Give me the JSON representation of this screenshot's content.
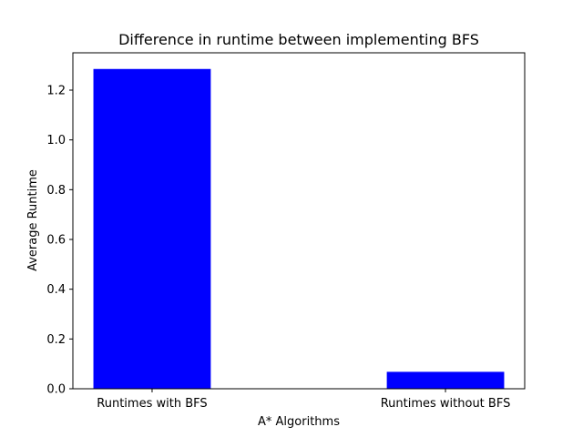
{
  "chart_data": {
    "type": "bar",
    "title": "Difference in runtime between implementing BFS",
    "xlabel": "A* Algorithms",
    "ylabel": "Average Runtime",
    "categories": [
      "Runtimes with BFS",
      "Runtimes without BFS"
    ],
    "values": [
      1.285,
      0.068
    ],
    "ylim": [
      0,
      1.35
    ],
    "yticks": [
      0.0,
      0.2,
      0.4,
      0.6,
      0.8,
      1.0,
      1.2
    ],
    "ytick_labels": [
      "0.0",
      "0.2",
      "0.4",
      "0.6",
      "0.8",
      "1.0",
      "1.2"
    ],
    "bar_color": "#0000ff",
    "grid": false,
    "legend": "none"
  }
}
